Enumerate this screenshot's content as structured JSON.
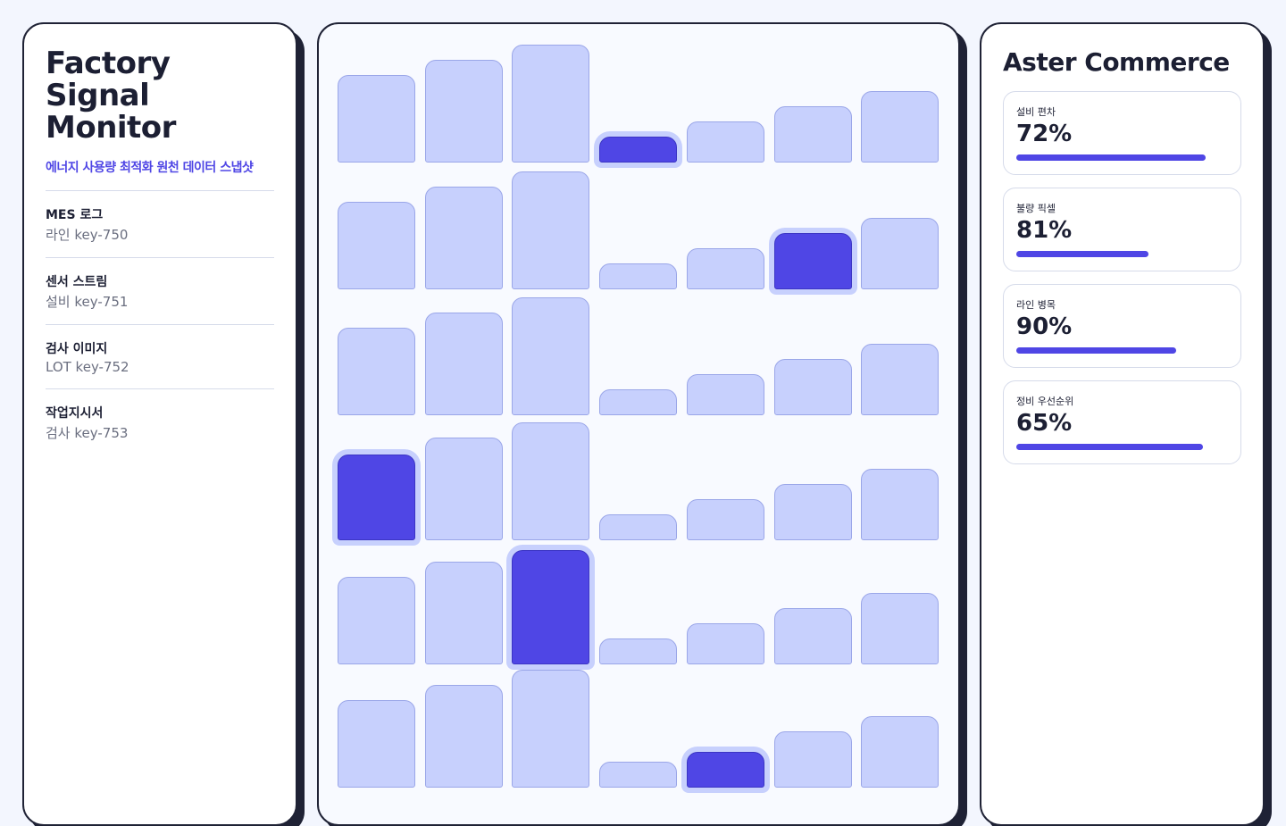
{
  "header": {
    "title": "Factory Signal Monitor",
    "subtitle": "에너지 사용량 최적화 원천 데이터 스냅샷"
  },
  "sources": [
    {
      "label": "MES 로그",
      "detail": "라인 key-750"
    },
    {
      "label": "센서 스트림",
      "detail": "설비 key-751"
    },
    {
      "label": "검사 이미지",
      "detail": "LOT key-752"
    },
    {
      "label": "작업지시서",
      "detail": "검사 key-753"
    }
  ],
  "panel": {
    "title": "Aster Commerce",
    "metrics": [
      {
        "label": "설비 편차",
        "value": "72%"
      },
      {
        "label": "불량 픽셀",
        "value": "81%"
      },
      {
        "label": "라인 병목",
        "value": "90%"
      },
      {
        "label": "정비 우선순위",
        "value": "65%"
      }
    ]
  }
}
